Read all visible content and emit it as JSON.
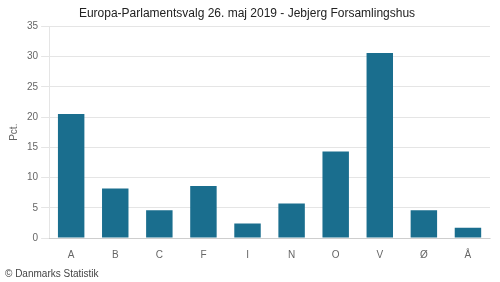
{
  "chart_data": {
    "type": "bar",
    "title": "Europa-Parlamentsvalg 26. maj 2019 - Jebjerg Forsamlingshus",
    "ylabel": "Pct.",
    "annotations": [
      "© Danmarks Statistik"
    ],
    "categories": [
      "A",
      "B",
      "C",
      "F",
      "I",
      "N",
      "O",
      "V",
      "Ø",
      "Å"
    ],
    "values": [
      20.5,
      8.2,
      4.6,
      8.6,
      2.4,
      5.7,
      14.3,
      30.6,
      4.6,
      1.7
    ],
    "color": "#1a6e8e",
    "ylim": [
      0,
      35
    ],
    "yticks": [
      0,
      5,
      10,
      15,
      20,
      25,
      30,
      35
    ],
    "grid": true
  }
}
